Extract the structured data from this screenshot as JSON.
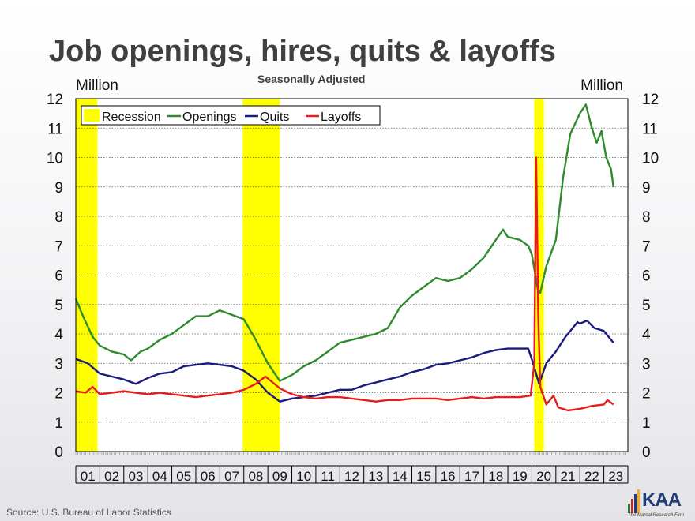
{
  "header": {
    "title": "Job openings, hires, quits & layoffs",
    "subtitle": "Seasonally Adjusted"
  },
  "footer": {
    "source": "Source: U.S. Bureau of Labor Statistics"
  },
  "logo": {
    "text": "KAA",
    "tagline": "The Marsal Research Firm",
    "bar_colors": [
      "#2e7d32",
      "#c62828",
      "#1f3d7a",
      "#f9a825"
    ]
  },
  "chart_data": {
    "type": "line",
    "left_axis_label": "Million",
    "right_axis_label": "Million",
    "ylim": [
      0,
      12
    ],
    "yticks": [
      0,
      1,
      2,
      3,
      4,
      5,
      6,
      7,
      8,
      9,
      10,
      11,
      12
    ],
    "xlim": [
      2001.0,
      2024.0
    ],
    "year_labels": [
      "01",
      "02",
      "03",
      "04",
      "05",
      "06",
      "07",
      "08",
      "09",
      "10",
      "11",
      "12",
      "13",
      "14",
      "15",
      "16",
      "17",
      "18",
      "19",
      "20",
      "21",
      "22",
      "23"
    ],
    "grid": "horizontal dotted",
    "legend_position": "top-left",
    "recessions": [
      {
        "name": "Recession",
        "start": 2001.0,
        "end": 2001.9
      },
      {
        "name": "Recession",
        "start": 2007.95,
        "end": 2009.5
      },
      {
        "name": "Recession",
        "start": 2020.1,
        "end": 2020.5
      }
    ],
    "recession_color": "#ffff00",
    "series": [
      {
        "name": "Openings",
        "color": "#2e8b2e",
        "points": [
          [
            2001.0,
            5.2
          ],
          [
            2001.3,
            4.6
          ],
          [
            2001.7,
            3.9
          ],
          [
            2002.0,
            3.6
          ],
          [
            2002.5,
            3.4
          ],
          [
            2003.0,
            3.3
          ],
          [
            2003.3,
            3.1
          ],
          [
            2003.7,
            3.4
          ],
          [
            2004.0,
            3.5
          ],
          [
            2004.5,
            3.8
          ],
          [
            2005.0,
            4.0
          ],
          [
            2005.5,
            4.3
          ],
          [
            2006.0,
            4.6
          ],
          [
            2006.5,
            4.6
          ],
          [
            2007.0,
            4.8
          ],
          [
            2007.5,
            4.65
          ],
          [
            2008.0,
            4.5
          ],
          [
            2008.5,
            3.8
          ],
          [
            2009.0,
            3.0
          ],
          [
            2009.5,
            2.4
          ],
          [
            2010.0,
            2.6
          ],
          [
            2010.5,
            2.9
          ],
          [
            2011.0,
            3.1
          ],
          [
            2011.5,
            3.4
          ],
          [
            2012.0,
            3.7
          ],
          [
            2012.5,
            3.8
          ],
          [
            2013.0,
            3.9
          ],
          [
            2013.5,
            4.0
          ],
          [
            2014.0,
            4.2
          ],
          [
            2014.5,
            4.9
          ],
          [
            2015.0,
            5.3
          ],
          [
            2015.5,
            5.6
          ],
          [
            2016.0,
            5.9
          ],
          [
            2016.5,
            5.8
          ],
          [
            2017.0,
            5.9
          ],
          [
            2017.5,
            6.2
          ],
          [
            2018.0,
            6.6
          ],
          [
            2018.5,
            7.2
          ],
          [
            2018.8,
            7.55
          ],
          [
            2019.0,
            7.3
          ],
          [
            2019.5,
            7.2
          ],
          [
            2019.85,
            7.0
          ],
          [
            2020.0,
            6.7
          ],
          [
            2020.25,
            5.5
          ],
          [
            2020.35,
            5.4
          ],
          [
            2020.6,
            6.3
          ],
          [
            2021.0,
            7.2
          ],
          [
            2021.3,
            9.3
          ],
          [
            2021.6,
            10.8
          ],
          [
            2022.0,
            11.5
          ],
          [
            2022.25,
            11.8
          ],
          [
            2022.5,
            11.0
          ],
          [
            2022.7,
            10.5
          ],
          [
            2022.9,
            10.9
          ],
          [
            2023.1,
            10.0
          ],
          [
            2023.3,
            9.6
          ],
          [
            2023.4,
            9.0
          ]
        ]
      },
      {
        "name": "Quits",
        "color": "#1a1a80",
        "points": [
          [
            2001.0,
            3.15
          ],
          [
            2001.5,
            3.0
          ],
          [
            2002.0,
            2.65
          ],
          [
            2002.5,
            2.55
          ],
          [
            2003.0,
            2.45
          ],
          [
            2003.5,
            2.3
          ],
          [
            2004.0,
            2.5
          ],
          [
            2004.5,
            2.65
          ],
          [
            2005.0,
            2.7
          ],
          [
            2005.5,
            2.9
          ],
          [
            2006.0,
            2.95
          ],
          [
            2006.5,
            3.0
          ],
          [
            2007.0,
            2.95
          ],
          [
            2007.5,
            2.9
          ],
          [
            2008.0,
            2.75
          ],
          [
            2008.5,
            2.45
          ],
          [
            2009.0,
            2.0
          ],
          [
            2009.5,
            1.7
          ],
          [
            2010.0,
            1.8
          ],
          [
            2010.5,
            1.85
          ],
          [
            2011.0,
            1.9
          ],
          [
            2011.5,
            2.0
          ],
          [
            2012.0,
            2.1
          ],
          [
            2012.5,
            2.1
          ],
          [
            2013.0,
            2.25
          ],
          [
            2013.5,
            2.35
          ],
          [
            2014.0,
            2.45
          ],
          [
            2014.5,
            2.55
          ],
          [
            2015.0,
            2.7
          ],
          [
            2015.5,
            2.8
          ],
          [
            2016.0,
            2.95
          ],
          [
            2016.5,
            3.0
          ],
          [
            2017.0,
            3.1
          ],
          [
            2017.5,
            3.2
          ],
          [
            2018.0,
            3.35
          ],
          [
            2018.5,
            3.45
          ],
          [
            2019.0,
            3.5
          ],
          [
            2019.5,
            3.5
          ],
          [
            2019.85,
            3.5
          ],
          [
            2020.05,
            3.0
          ],
          [
            2020.3,
            2.3
          ],
          [
            2020.6,
            3.0
          ],
          [
            2021.0,
            3.4
          ],
          [
            2021.4,
            3.9
          ],
          [
            2021.9,
            4.4
          ],
          [
            2022.0,
            4.35
          ],
          [
            2022.3,
            4.45
          ],
          [
            2022.6,
            4.2
          ],
          [
            2023.0,
            4.1
          ],
          [
            2023.2,
            3.9
          ],
          [
            2023.4,
            3.7
          ]
        ]
      },
      {
        "name": "Layoffs",
        "color": "#e81c1c",
        "points": [
          [
            2001.0,
            2.05
          ],
          [
            2001.4,
            2.0
          ],
          [
            2001.7,
            2.2
          ],
          [
            2002.0,
            1.95
          ],
          [
            2002.5,
            2.0
          ],
          [
            2003.0,
            2.05
          ],
          [
            2003.5,
            2.0
          ],
          [
            2004.0,
            1.95
          ],
          [
            2004.5,
            2.0
          ],
          [
            2005.0,
            1.95
          ],
          [
            2005.5,
            1.9
          ],
          [
            2006.0,
            1.85
          ],
          [
            2006.5,
            1.9
          ],
          [
            2007.0,
            1.95
          ],
          [
            2007.5,
            2.0
          ],
          [
            2008.0,
            2.1
          ],
          [
            2008.5,
            2.3
          ],
          [
            2008.9,
            2.55
          ],
          [
            2009.2,
            2.35
          ],
          [
            2009.5,
            2.15
          ],
          [
            2010.0,
            1.95
          ],
          [
            2010.5,
            1.85
          ],
          [
            2011.0,
            1.8
          ],
          [
            2011.5,
            1.85
          ],
          [
            2012.0,
            1.85
          ],
          [
            2012.5,
            1.8
          ],
          [
            2013.0,
            1.75
          ],
          [
            2013.5,
            1.7
          ],
          [
            2014.0,
            1.75
          ],
          [
            2014.5,
            1.75
          ],
          [
            2015.0,
            1.8
          ],
          [
            2015.5,
            1.8
          ],
          [
            2016.0,
            1.8
          ],
          [
            2016.5,
            1.75
          ],
          [
            2017.0,
            1.8
          ],
          [
            2017.5,
            1.85
          ],
          [
            2018.0,
            1.8
          ],
          [
            2018.5,
            1.85
          ],
          [
            2019.0,
            1.85
          ],
          [
            2019.5,
            1.85
          ],
          [
            2019.95,
            1.9
          ],
          [
            2020.1,
            3.0
          ],
          [
            2020.18,
            10.0
          ],
          [
            2020.27,
            4.5
          ],
          [
            2020.35,
            2.2
          ],
          [
            2020.6,
            1.6
          ],
          [
            2020.9,
            1.9
          ],
          [
            2021.1,
            1.5
          ],
          [
            2021.5,
            1.4
          ],
          [
            2022.0,
            1.45
          ],
          [
            2022.5,
            1.55
          ],
          [
            2023.0,
            1.6
          ],
          [
            2023.15,
            1.75
          ],
          [
            2023.4,
            1.6
          ]
        ]
      }
    ]
  }
}
